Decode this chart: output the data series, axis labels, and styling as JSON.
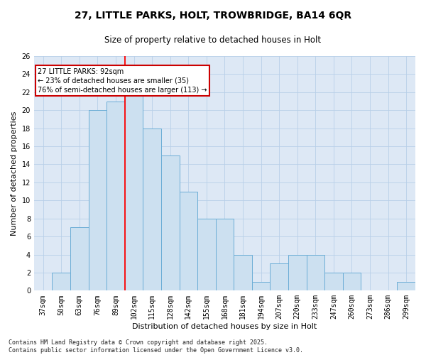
{
  "title1": "27, LITTLE PARKS, HOLT, TROWBRIDGE, BA14 6QR",
  "title2": "Size of property relative to detached houses in Holt",
  "xlabel": "Distribution of detached houses by size in Holt",
  "ylabel": "Number of detached properties",
  "footnote": "Contains HM Land Registry data © Crown copyright and database right 2025.\nContains public sector information licensed under the Open Government Licence v3.0.",
  "bin_labels": [
    "37sqm",
    "50sqm",
    "63sqm",
    "76sqm",
    "89sqm",
    "102sqm",
    "115sqm",
    "128sqm",
    "142sqm",
    "155sqm",
    "168sqm",
    "181sqm",
    "194sqm",
    "207sqm",
    "220sqm",
    "233sqm",
    "247sqm",
    "260sqm",
    "273sqm",
    "286sqm",
    "299sqm"
  ],
  "values": [
    0,
    2,
    7,
    20,
    21,
    22,
    18,
    15,
    11,
    8,
    8,
    4,
    1,
    3,
    4,
    4,
    2,
    2,
    0,
    0,
    1
  ],
  "bar_color": "#cce0f0",
  "bar_edge_color": "#6badd6",
  "red_line_x": 4.5,
  "property_label": "27 LITTLE PARKS: 92sqm",
  "annotation_line1": "← 23% of detached houses are smaller (35)",
  "annotation_line2": "76% of semi-detached houses are larger (113) →",
  "annotation_box_color": "#ffffff",
  "annotation_box_edge": "#cc0000",
  "ylim": [
    0,
    26
  ],
  "yticks": [
    0,
    2,
    4,
    6,
    8,
    10,
    12,
    14,
    16,
    18,
    20,
    22,
    24,
    26
  ],
  "grid_color": "#b8cfe8",
  "background_color": "#dde8f5",
  "title1_fontsize": 10,
  "title2_fontsize": 8.5,
  "ylabel_fontsize": 8,
  "xlabel_fontsize": 8,
  "tick_fontsize": 7,
  "annot_fontsize": 7
}
